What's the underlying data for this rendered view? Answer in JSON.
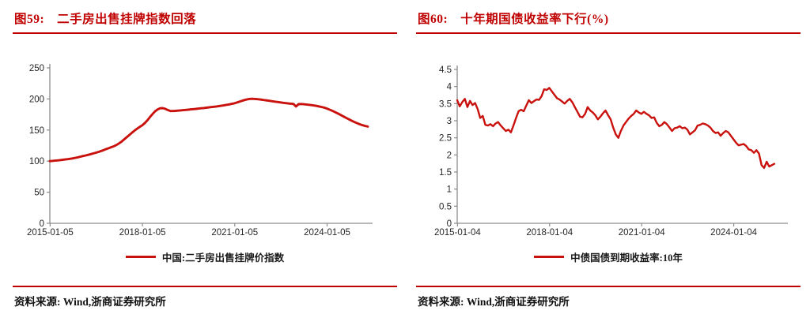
{
  "colors": {
    "accent": "#C00000",
    "line": "#C9110D",
    "axis": "#8c8c8c",
    "tick_text": "#262626"
  },
  "figures": [
    {
      "fig_label": "图59:",
      "title": "二手房出售挂牌指数回落",
      "legend": "中国:二手房出售挂牌价指数",
      "source": "资料来源: Wind,浙商证券研究所"
    },
    {
      "fig_label": "图60:",
      "title": "十年期国债收益率下行(%)",
      "legend": "中债国债到期收益率:10年",
      "source": "资料来源: Wind,浙商证券研究所"
    }
  ],
  "chart_data": [
    {
      "type": "line",
      "title": "二手房出售挂牌指数回落",
      "ylabel": "",
      "xlabel": "",
      "ylim": [
        0,
        250
      ],
      "yticks": [
        0,
        50,
        100,
        150,
        200,
        250
      ],
      "ytick_labels": [
        "0",
        "50",
        "100",
        "150",
        "200",
        "250"
      ],
      "xticks": [
        {
          "year": 2015.01,
          "label": "2015-01-05"
        },
        {
          "year": 2018.01,
          "label": "2018-01-05"
        },
        {
          "year": 2021.01,
          "label": "2021-01-05"
        },
        {
          "year": 2024.01,
          "label": "2024-01-05"
        }
      ],
      "x_start_year": 2015.0,
      "x_step_years": 0.08333,
      "grid": false,
      "legend_position": "bottom",
      "series": [
        {
          "name": "中国:二手房出售挂牌价指数",
          "color": "#C9110D",
          "values": [
            100,
            100.4,
            100.8,
            101.2,
            101.7,
            102.2,
            102.7,
            103.2,
            103.8,
            104.5,
            105.3,
            106.2,
            107.2,
            108.2,
            109.2,
            110.2,
            111.3,
            112.4,
            113.6,
            114.9,
            116.3,
            117.8,
            119.4,
            121,
            122.5,
            124,
            126,
            128.5,
            131.5,
            135,
            138.5,
            142,
            145.5,
            149,
            152,
            155,
            157.5,
            161,
            165.5,
            170.5,
            175.5,
            180,
            183,
            185,
            185.3,
            184.2,
            182.2,
            180.6,
            180.6,
            180.9,
            181.2,
            181.6,
            182,
            182.4,
            182.8,
            183.2,
            183.6,
            184,
            184.5,
            185,
            185.4,
            185.9,
            186.4,
            186.9,
            187.4,
            188,
            188.6,
            189.2,
            189.9,
            190.6,
            191.3,
            192.1,
            193,
            194.3,
            195.7,
            197.1,
            198.4,
            199.4,
            200.1,
            200.3,
            200,
            199.6,
            199.1,
            198.6,
            198,
            197.4,
            196.8,
            196.2,
            195.6,
            195,
            194.4,
            193.8,
            193.3,
            192.8,
            192.4,
            192,
            188,
            191.6,
            191.9,
            191.5,
            191.1,
            190.6,
            190.1,
            189.5,
            188.8,
            188,
            187.1,
            186.1,
            184.6,
            183,
            181.2,
            179.3,
            177.3,
            175.2,
            173,
            170.8,
            168.6,
            166.5,
            164.5,
            162.6,
            160.8,
            159.2,
            157.8,
            156.6,
            155.6
          ]
        }
      ]
    },
    {
      "type": "line",
      "title": "十年期国债收益率下行(%)",
      "ylabel": "",
      "xlabel": "",
      "ylim": [
        0,
        4.5
      ],
      "yticks": [
        0,
        0.5,
        1,
        1.5,
        2,
        2.5,
        3,
        3.5,
        4,
        4.5
      ],
      "ytick_labels": [
        "0",
        "0.5",
        "1",
        "1.5",
        "2",
        "2.5",
        "3",
        "3.5",
        "4",
        "4.5"
      ],
      "xticks": [
        {
          "year": 2015.01,
          "label": "2015-01-04"
        },
        {
          "year": 2018.01,
          "label": "2018-01-04"
        },
        {
          "year": 2021.01,
          "label": "2021-01-04"
        },
        {
          "year": 2024.01,
          "label": "2024-01-04"
        }
      ],
      "x_start_year": 2015.0,
      "x_step_years": 0.08333,
      "grid": false,
      "legend_position": "bottom",
      "series": [
        {
          "name": "中债国债到期收益率:10年",
          "color": "#C9110D",
          "values": [
            3.6,
            3.42,
            3.55,
            3.64,
            3.4,
            3.58,
            3.46,
            3.52,
            3.34,
            3.08,
            3.14,
            2.88,
            2.86,
            2.9,
            2.84,
            2.92,
            2.96,
            2.86,
            2.78,
            2.7,
            2.74,
            2.66,
            2.86,
            3.08,
            3.28,
            3.32,
            3.28,
            3.44,
            3.6,
            3.52,
            3.57,
            3.62,
            3.61,
            3.72,
            3.92,
            3.9,
            3.96,
            3.86,
            3.76,
            3.66,
            3.62,
            3.56,
            3.5,
            3.58,
            3.64,
            3.54,
            3.4,
            3.26,
            3.12,
            3.1,
            3.2,
            3.4,
            3.3,
            3.24,
            3.16,
            3.04,
            3.12,
            3.22,
            3.3,
            3.16,
            3.04,
            2.8,
            2.6,
            2.5,
            2.7,
            2.86,
            2.96,
            3.06,
            3.14,
            3.2,
            3.3,
            3.24,
            3.2,
            3.26,
            3.2,
            3.16,
            3.08,
            3.1,
            2.94,
            2.84,
            2.88,
            2.96,
            2.9,
            2.8,
            2.7,
            2.78,
            2.8,
            2.84,
            2.78,
            2.8,
            2.74,
            2.6,
            2.66,
            2.72,
            2.86,
            2.88,
            2.92,
            2.9,
            2.86,
            2.8,
            2.7,
            2.64,
            2.66,
            2.56,
            2.64,
            2.7,
            2.66,
            2.56,
            2.46,
            2.36,
            2.28,
            2.3,
            2.32,
            2.26,
            2.16,
            2.14,
            2.06,
            2.14,
            2.04,
            1.7,
            1.62,
            1.8,
            1.66,
            1.7,
            1.74
          ]
        }
      ]
    }
  ]
}
